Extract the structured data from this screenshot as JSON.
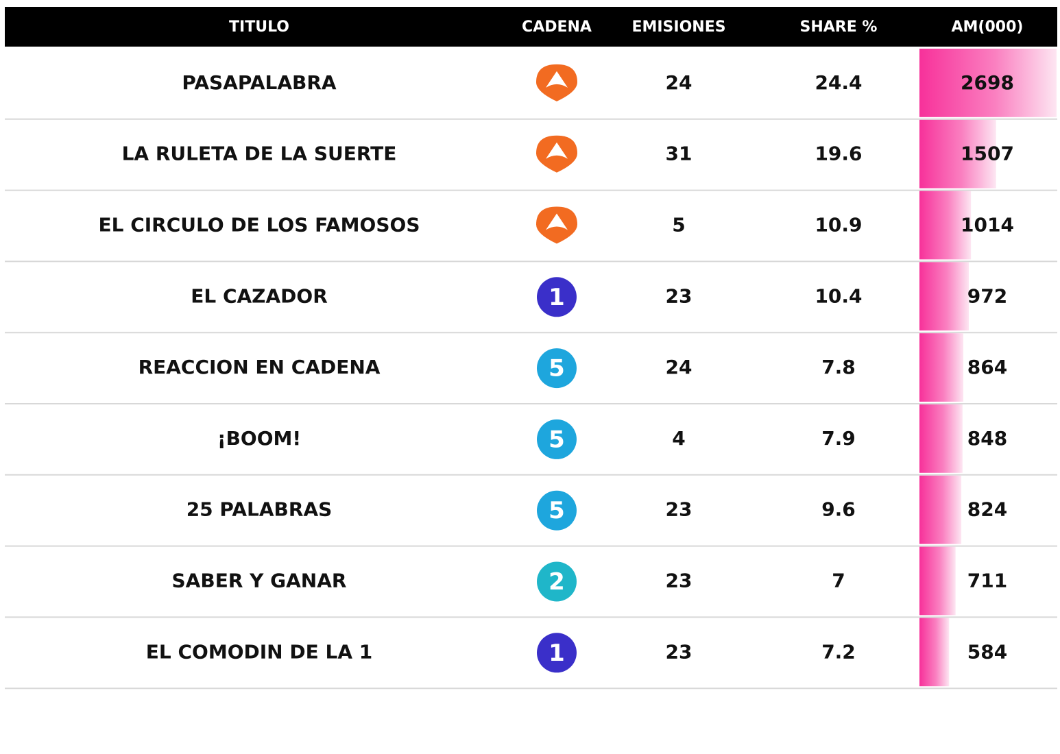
{
  "table": {
    "header": [
      "TITULO",
      "CADENA",
      "EMISIONES",
      "SHARE %",
      "AM(000)"
    ],
    "rows": [
      {
        "titulo": "PASAPALABRA",
        "cadena": {
          "label": null,
          "color": "#f26b21"
        },
        "emisiones": 24,
        "share": 24.4,
        "am": 2698
      },
      {
        "titulo": "LA RULETA DE LA SUERTE",
        "cadena": {
          "label": null,
          "color": "#f26b21"
        },
        "emisiones": 31,
        "share": 19.6,
        "am": 1507
      },
      {
        "titulo": "EL CIRCULO DE LOS FAMOSOS",
        "cadena": {
          "label": null,
          "color": "#f26b21"
        },
        "emisiones": 5,
        "share": 10.9,
        "am": 1014
      },
      {
        "titulo": "EL CAZADOR",
        "cadena": {
          "label": "1",
          "color": "#3a2fc9"
        },
        "emisiones": 23,
        "share": 10.4,
        "am": 972
      },
      {
        "titulo": "REACCION EN CADENA",
        "cadena": {
          "label": "5",
          "color": "#1ea6dd"
        },
        "emisiones": 24,
        "share": 7.8,
        "am": 864
      },
      {
        "titulo": "¡BOOM!",
        "cadena": {
          "label": "5",
          "color": "#1ea6dd"
        },
        "emisiones": 4,
        "share": 7.9,
        "am": 848
      },
      {
        "titulo": "25 PALABRAS",
        "cadena": {
          "label": "5",
          "color": "#1ea6dd"
        },
        "emisiones": 23,
        "share": 9.6,
        "am": 824
      },
      {
        "titulo": "SABER Y GANAR",
        "cadena": {
          "label": "2",
          "color": "#1fb6c9"
        },
        "emisiones": 23,
        "share": 7,
        "am": 711
      },
      {
        "titulo": "EL COMODIN DE LA 1",
        "cadena": {
          "label": "1",
          "color": "#3a2fc9"
        },
        "emisiones": 23,
        "share": 7.2,
        "am": 584
      }
    ]
  }
}
